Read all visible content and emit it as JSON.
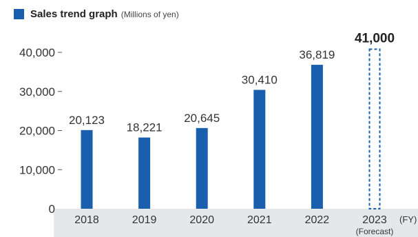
{
  "chart_data": {
    "type": "bar",
    "title": "Sales trend graph",
    "subtitle": "(Millions of yen)",
    "xlabel": "(FY)",
    "ylabel": "",
    "ylim": [
      0,
      40000
    ],
    "yticks": [
      "0",
      "10,000",
      "20,000",
      "30,000",
      "40,000"
    ],
    "ytick_values": [
      0,
      10000,
      20000,
      30000,
      40000
    ],
    "categories": [
      "2018",
      "2019",
      "2020",
      "2021",
      "2022",
      "2023"
    ],
    "category_sublabels": [
      "",
      "",
      "",
      "",
      "",
      "(Forecast)"
    ],
    "values": [
      20123,
      18221,
      20645,
      30410,
      36819,
      41000
    ],
    "value_labels": [
      "20,123",
      "18,221",
      "20,645",
      "30,410",
      "36,819",
      "41,000"
    ],
    "forecast": [
      false,
      false,
      false,
      false,
      false,
      true
    ],
    "grid": false,
    "colors": {
      "bar": "#1a5fae",
      "axis_band": "#e6e7e9",
      "legend": "#1a5fae"
    }
  }
}
